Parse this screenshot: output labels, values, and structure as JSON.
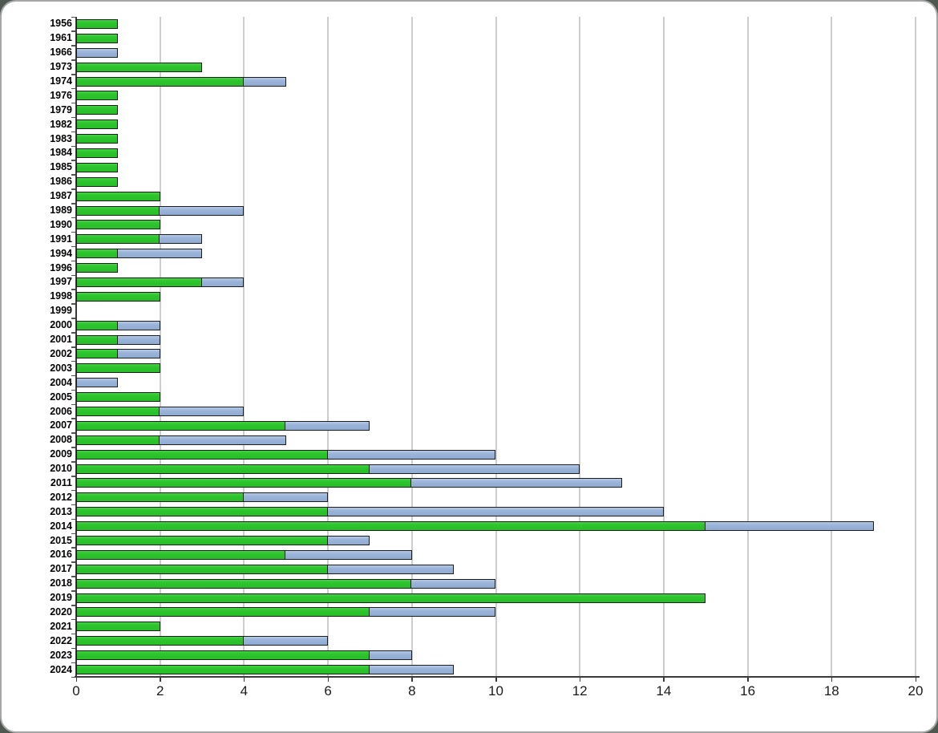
{
  "chart_data": {
    "type": "bar",
    "orientation": "horizontal",
    "stacked": true,
    "grid": true,
    "legend": false,
    "title": "",
    "xlabel": "",
    "ylabel": "",
    "xlim": [
      0,
      20
    ],
    "xticks": [
      0,
      2,
      4,
      6,
      8,
      10,
      12,
      14,
      16,
      18,
      20
    ],
    "categories": [
      "1956",
      "1961",
      "1966",
      "1973",
      "1974",
      "1976",
      "1979",
      "1982",
      "1983",
      "1984",
      "1985",
      "1986",
      "1987",
      "1989",
      "1990",
      "1991",
      "1994",
      "1996",
      "1997",
      "1998",
      "1999",
      "2000",
      "2001",
      "2002",
      "2003",
      "2004",
      "2005",
      "2006",
      "2007",
      "2008",
      "2009",
      "2010",
      "2011",
      "2012",
      "2013",
      "2014",
      "2015",
      "2016",
      "2017",
      "2018",
      "2019",
      "2020",
      "2021",
      "2022",
      "2023",
      "2024"
    ],
    "series": [
      {
        "name": "Green",
        "color": "#2dc52d",
        "values": [
          1,
          1,
          0,
          3,
          4,
          1,
          1,
          1,
          1,
          1,
          1,
          1,
          2,
          2,
          2,
          2,
          1,
          1,
          3,
          2,
          0,
          1,
          1,
          1,
          2,
          0,
          2,
          2,
          5,
          2,
          6,
          7,
          8,
          4,
          6,
          15,
          6,
          5,
          6,
          8,
          15,
          7,
          2,
          4,
          7,
          7
        ]
      },
      {
        "name": "Blue",
        "color": "#9ab3d8",
        "values": [
          0,
          0,
          1,
          0,
          1,
          0,
          0,
          0,
          0,
          0,
          0,
          0,
          0,
          2,
          0,
          1,
          2,
          0,
          1,
          0,
          0,
          1,
          1,
          1,
          0,
          1,
          0,
          2,
          2,
          3,
          4,
          5,
          5,
          2,
          8,
          4,
          1,
          3,
          3,
          2,
          0,
          3,
          0,
          2,
          1,
          2
        ]
      }
    ]
  },
  "frame": {
    "card_background": "#ffffff",
    "card_border_color": "#a6a6a6",
    "outer_corner_color": "#4e5850",
    "gridline_color": "#cdcdcd",
    "axis_color": "#3a3a3a",
    "bar_outline_color": "#1d1d1d"
  }
}
